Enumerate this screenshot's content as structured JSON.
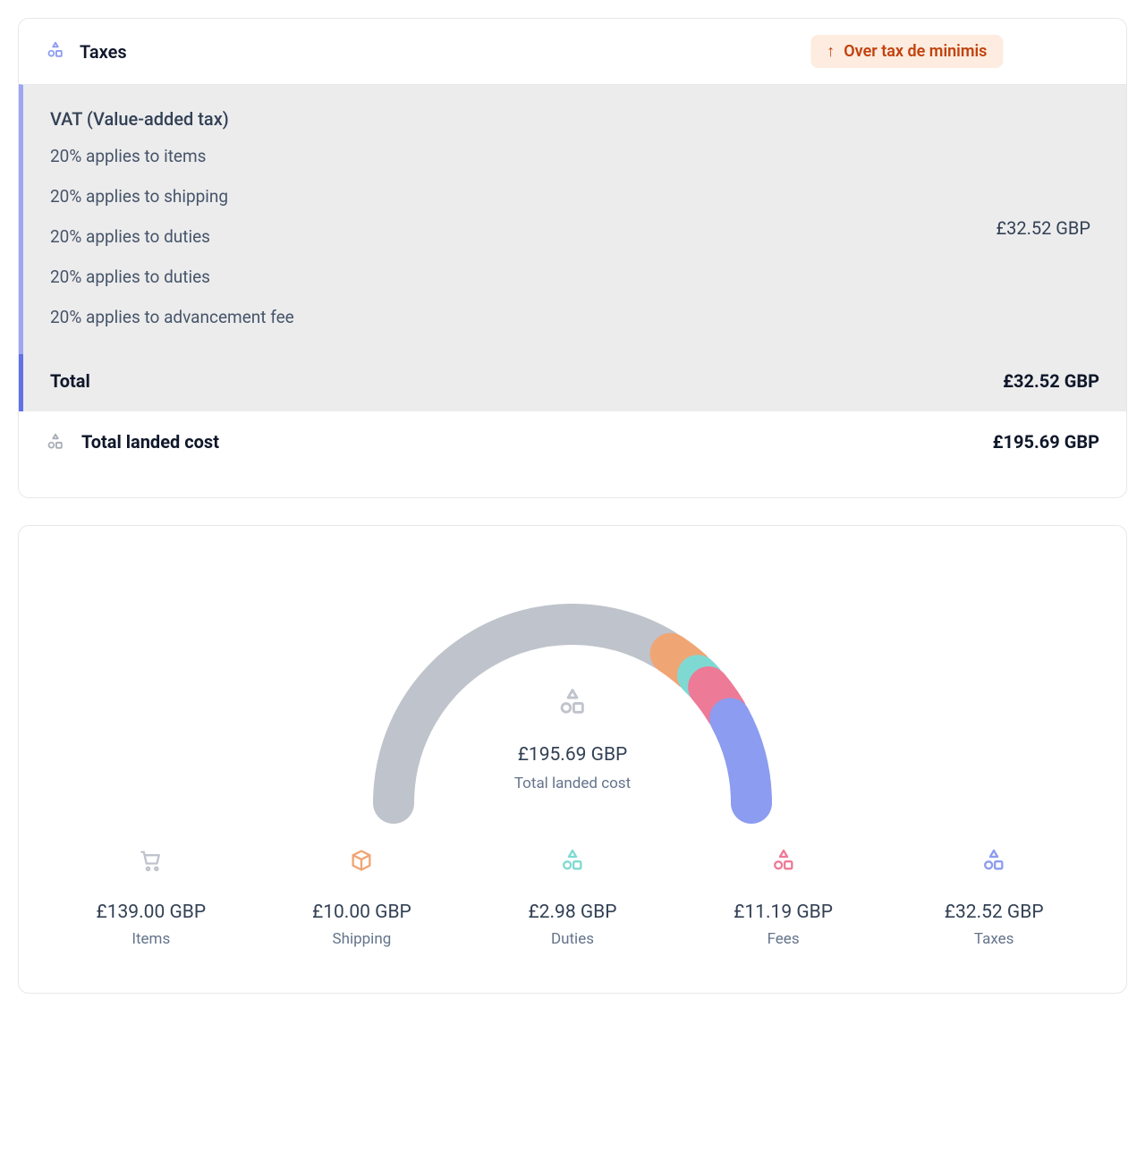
{
  "header": {
    "title": "Taxes",
    "icon_color": "#8c9cf0",
    "badge": {
      "text": "Over tax de minimis",
      "bg": "#fdecdf",
      "fg": "#c2410c",
      "arrow": "↑"
    }
  },
  "vat": {
    "title": "VAT (Value-added tax)",
    "lines": [
      "20% applies to items",
      "20% applies to shipping",
      "20% applies to duties",
      "20% applies to duties",
      "20% applies to advancement fee"
    ],
    "amount": "£32.52 GBP",
    "section_bg": "#ececed",
    "accent_light": "#9ca6f4",
    "accent_dark": "#6171e8"
  },
  "total": {
    "label": "Total",
    "value": "£32.52 GBP"
  },
  "landed": {
    "label": "Total landed cost",
    "value": "£195.69 GBP",
    "icon_color": "#a8adb7"
  },
  "chart": {
    "type": "semi-donut",
    "total_label": "Total landed cost",
    "total_value": "£195.69 GBP",
    "center_icon_color": "#bfc3cb",
    "stroke_width": 46,
    "gap_deg": 2.5,
    "radius": 200,
    "background_color": "#ffffff",
    "segments": [
      {
        "key": "items",
        "label": "Items",
        "value": 139.0,
        "display": "£139.00 GBP",
        "color": "#bfc3cb",
        "icon": "cart"
      },
      {
        "key": "shipping",
        "label": "Shipping",
        "value": 10.0,
        "display": "£10.00 GBP",
        "color": "#f0a574",
        "icon": "box"
      },
      {
        "key": "duties",
        "label": "Duties",
        "value": 2.98,
        "display": "£2.98 GBP",
        "color": "#7fd9d3",
        "icon": "shapes"
      },
      {
        "key": "fees",
        "label": "Fees",
        "value": 11.19,
        "display": "£11.19 GBP",
        "color": "#ed7a97",
        "icon": "shapes"
      },
      {
        "key": "taxes",
        "label": "Taxes",
        "value": 32.52,
        "display": "£32.52 GBP",
        "color": "#8c9cf0",
        "icon": "shapes"
      }
    ]
  },
  "typography": {
    "title_fontsize": 20,
    "body_fontsize": 19,
    "legend_value_fontsize": 21,
    "legend_label_fontsize": 17,
    "font_family": "-apple-system"
  },
  "palette": {
    "text_primary": "#0f172a",
    "text_secondary": "#334155",
    "text_muted": "#64748b",
    "border": "#e5e7eb"
  }
}
